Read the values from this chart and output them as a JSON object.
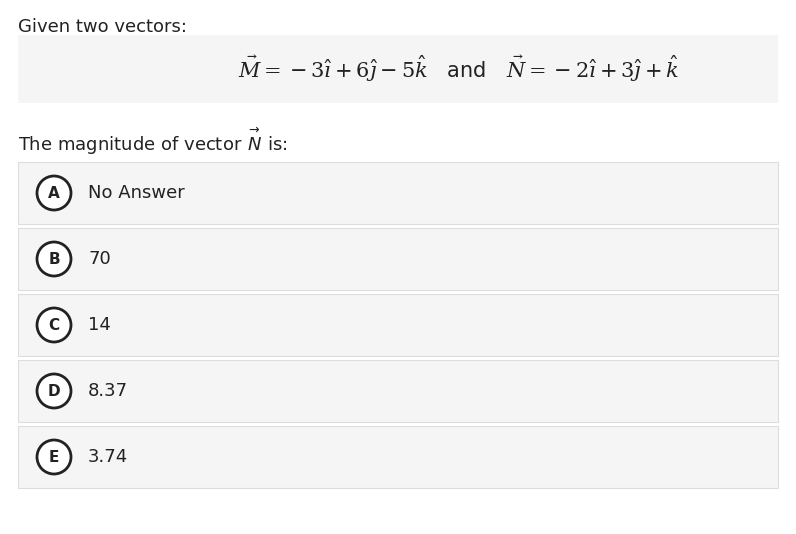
{
  "title_text": "Given two vectors:",
  "subtitle_text": "The magnitude of vector $\\overset{\\rightarrow}{N}$ is:",
  "options": [
    {
      "label": "A",
      "text": "No Answer"
    },
    {
      "label": "B",
      "text": "70"
    },
    {
      "label": "C",
      "text": "14"
    },
    {
      "label": "D",
      "text": "8.37"
    },
    {
      "label": "E",
      "text": "3.74"
    }
  ],
  "bg_color": "#ffffff",
  "option_bg_color": "#f5f5f5",
  "option_border_color": "#dddddd",
  "text_color": "#222222",
  "circle_color": "#222222",
  "eq_bg_color": "#f5f5f5",
  "fig_width": 7.96,
  "fig_height": 5.34,
  "dpi": 100,
  "title_fontsize": 13,
  "eq_fontsize": 15,
  "subtitle_fontsize": 13,
  "option_fontsize": 13,
  "label_fontsize": 11
}
